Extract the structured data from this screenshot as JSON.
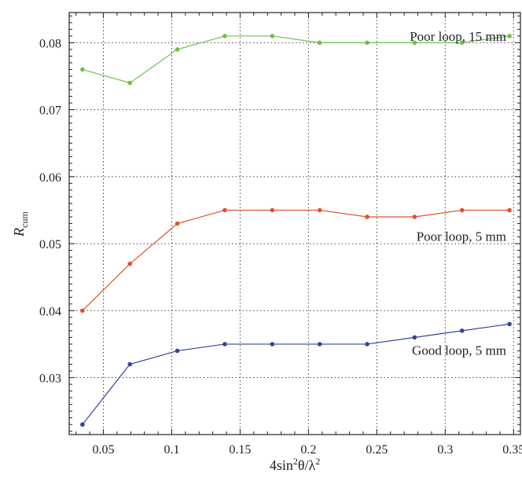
{
  "chart_data": {
    "type": "line",
    "x": [
      0.0347,
      0.0694,
      0.1041,
      0.1388,
      0.1735,
      0.2082,
      0.2429,
      0.2776,
      0.3123,
      0.347
    ],
    "xlim": [
      0.025,
      0.355
    ],
    "ylim": [
      0.0215,
      0.0845
    ],
    "x_ticks": [
      0.05,
      0.1,
      0.15,
      0.2,
      0.25,
      0.3,
      0.35
    ],
    "x_tick_labels": [
      "0.05",
      "0.1",
      "0.15",
      "0.2",
      "0.25",
      "0.3",
      "0.35"
    ],
    "y_ticks": [
      0.03,
      0.04,
      0.05,
      0.06,
      0.07,
      0.08
    ],
    "y_tick_labels": [
      "0.03",
      "0.04",
      "0.05",
      "0.06",
      "0.07",
      "0.08"
    ],
    "xlabel_parts": [
      "4sin",
      "2",
      "θ/λ",
      "2"
    ],
    "ylabel_parts": [
      "R",
      "cum"
    ],
    "grid": true,
    "series": [
      {
        "name": "Poor loop, 15 mm",
        "color": "#6cc24a",
        "values": [
          0.076,
          0.074,
          0.079,
          0.081,
          0.081,
          0.08,
          0.08,
          0.08,
          0.08,
          0.081
        ]
      },
      {
        "name": "Poor loop, 5 mm",
        "color": "#e0502d",
        "values": [
          0.04,
          0.047,
          0.053,
          0.055,
          0.055,
          0.055,
          0.054,
          0.054,
          0.055,
          0.055
        ]
      },
      {
        "name": "Good loop, 5 mm",
        "color": "#33449a",
        "values": [
          0.023,
          0.032,
          0.034,
          0.035,
          0.035,
          0.035,
          0.035,
          0.036,
          0.037,
          0.038
        ]
      }
    ]
  }
}
